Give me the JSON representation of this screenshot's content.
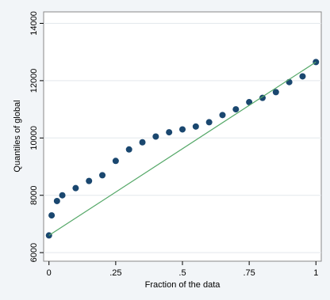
{
  "chart_data": {
    "type": "scatter",
    "xlabel": "Fraction of the data",
    "ylabel": "Quantiles of global",
    "series": [
      {
        "mode": "markers",
        "color": "#1a476f",
        "x": [
          0,
          0.01,
          0.03,
          0.05,
          0.1,
          0.15,
          0.2,
          0.25,
          0.3,
          0.35,
          0.4,
          0.45,
          0.5,
          0.55,
          0.6,
          0.65,
          0.7,
          0.75,
          0.8,
          0.85,
          0.9,
          0.95,
          1
        ],
        "values": [
          6600,
          7300,
          7800,
          8000,
          8250,
          8500,
          8700,
          9200,
          9600,
          9850,
          10050,
          10200,
          10300,
          10400,
          10550,
          10800,
          11000,
          11250,
          11400,
          11600,
          11950,
          12150,
          12650
        ]
      },
      {
        "mode": "line",
        "color": "#55a868",
        "x": [
          0,
          1
        ],
        "values": [
          6600,
          12650
        ]
      }
    ],
    "xlim": [
      -0.02,
      1.02
    ],
    "ylim": [
      5700,
      14400
    ],
    "xticks": [
      0,
      {
        "value": 0.25,
        "label": ".25"
      },
      {
        "value": 0.5,
        "label": ".5"
      },
      {
        "value": 0.75,
        "label": ".75"
      },
      1
    ],
    "yticks": [
      6000,
      8000,
      10000,
      12000,
      14000
    ],
    "grid": true
  }
}
